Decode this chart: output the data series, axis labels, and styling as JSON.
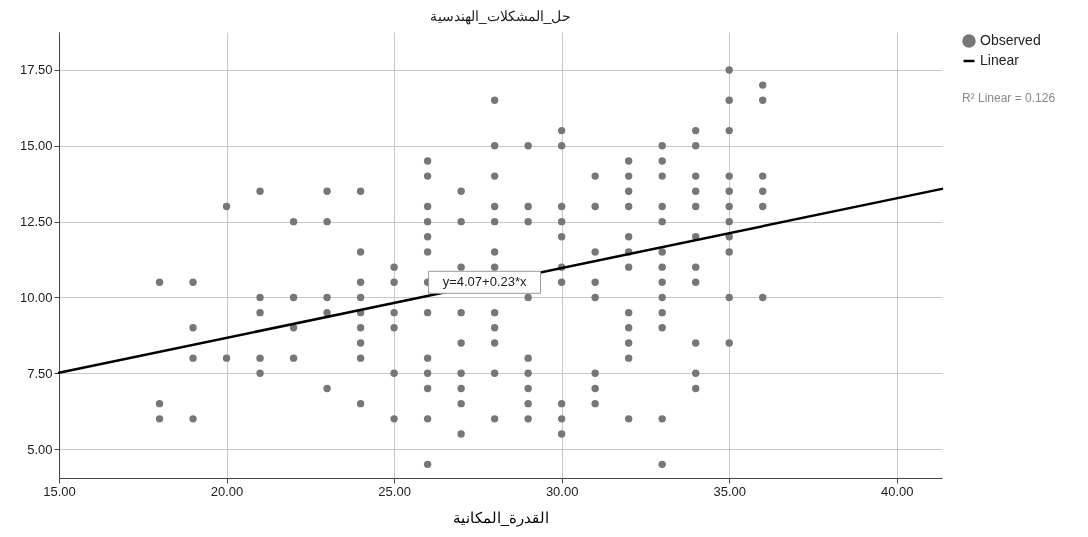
{
  "chart_data": {
    "type": "scatter",
    "title": "حل_المشكلات_الهندسية",
    "xlabel": "القدرة_المكانية",
    "xlim": [
      15,
      41.35
    ],
    "ylim": [
      4.05,
      18.75
    ],
    "xticks": [
      {
        "value": 15,
        "label": "15.00"
      },
      {
        "value": 20,
        "label": "20.00"
      },
      {
        "value": 25,
        "label": "25.00"
      },
      {
        "value": 30,
        "label": "30.00"
      },
      {
        "value": 35,
        "label": "35.00"
      },
      {
        "value": 40,
        "label": "40.00"
      }
    ],
    "yticks": [
      {
        "value": 5,
        "label": "5.00"
      },
      {
        "value": 7.5,
        "label": "7.50"
      },
      {
        "value": 10,
        "label": "10.00"
      },
      {
        "value": 12.5,
        "label": "12.50"
      },
      {
        "value": 15,
        "label": "15.00"
      },
      {
        "value": 17.5,
        "label": "17.50"
      }
    ],
    "grid": true,
    "legend": "top right",
    "annotations": [
      {
        "text": "y=4.07+0.23*x",
        "x": 27.7,
        "y": 10.5
      },
      "R² Linear = 0.126"
    ],
    "series": [
      {
        "name": "Observed",
        "marker": "circle",
        "color": "#777777",
        "x": [
          18,
          18,
          18,
          19,
          19,
          19,
          19,
          20,
          20,
          21,
          21,
          21,
          21,
          21,
          22,
          22,
          22,
          22,
          23,
          23,
          23,
          23,
          23,
          24,
          24,
          24,
          24,
          24,
          24,
          24,
          24,
          24,
          25,
          25,
          25,
          25,
          25,
          25,
          26,
          26,
          26,
          26,
          26,
          26,
          26,
          26,
          26,
          26,
          26,
          26,
          26,
          27,
          27,
          27,
          27,
          27,
          27,
          27,
          27,
          27,
          28,
          28,
          28,
          28,
          28,
          28,
          28,
          28,
          28,
          28,
          28,
          28,
          29,
          29,
          29,
          29,
          29,
          29,
          29,
          29,
          29,
          30,
          30,
          30,
          30,
          30,
          30,
          30,
          30,
          30,
          30,
          31,
          31,
          31,
          31,
          31,
          31,
          31,
          31,
          32,
          32,
          32,
          32,
          32,
          32,
          32,
          32,
          32,
          32,
          32,
          32,
          33,
          33,
          33,
          33,
          33,
          33,
          33,
          33,
          33,
          33,
          33,
          33,
          33,
          34,
          34,
          34,
          34,
          34,
          34,
          34,
          34,
          34,
          34,
          34,
          35,
          35,
          35,
          35,
          35,
          35,
          35,
          35,
          35,
          35,
          35,
          36,
          36,
          36,
          36,
          36,
          36
        ],
        "values": [
          10.5,
          6.5,
          6,
          10.5,
          9,
          8,
          6,
          13,
          8,
          13.5,
          10,
          9.5,
          8,
          7.5,
          12.5,
          10,
          9,
          8,
          13.5,
          12.5,
          10,
          9.5,
          7,
          13.5,
          11.5,
          10.5,
          10,
          9.5,
          9,
          8.5,
          8,
          6.5,
          11,
          10.5,
          9.5,
          9,
          7.5,
          6,
          14.5,
          14,
          13,
          12.5,
          12,
          11.5,
          10.5,
          9.5,
          8,
          7.5,
          7,
          6,
          4.5,
          13.5,
          12.5,
          11,
          9.5,
          8.5,
          7.5,
          7,
          6.5,
          5.5,
          16.5,
          15,
          14,
          13,
          12.5,
          11.5,
          11,
          9.5,
          9,
          8.5,
          7.5,
          6,
          15,
          13,
          12.5,
          10,
          8,
          7.5,
          7,
          6.5,
          6,
          15.5,
          15,
          13,
          12.5,
          12,
          11,
          10.5,
          6.5,
          6,
          5.5,
          14,
          13,
          11.5,
          10.5,
          10,
          7.5,
          7,
          6.5,
          14.5,
          14,
          13.5,
          13,
          12,
          11.5,
          11,
          9.5,
          9,
          8.5,
          8,
          6,
          15,
          14.5,
          14,
          13,
          12.5,
          11.5,
          11,
          10.5,
          10,
          9.5,
          9,
          6,
          4.5,
          15.5,
          15,
          14,
          13.5,
          13,
          12,
          11,
          10.5,
          8.5,
          7.5,
          7,
          17.5,
          16.5,
          15.5,
          14,
          13.5,
          13,
          12.5,
          12,
          11.5,
          10,
          8.5,
          17,
          16.5,
          14,
          13.5,
          13,
          10
        ]
      },
      {
        "type": "line",
        "name": "Linear",
        "color": "#000000",
        "x": [
          15,
          41.35
        ],
        "values": [
          7.52,
          13.58
        ]
      }
    ]
  }
}
